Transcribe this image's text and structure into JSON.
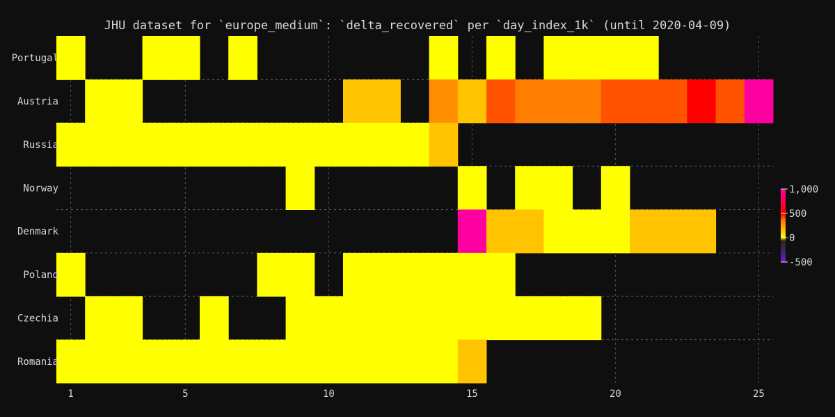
{
  "chart_data": {
    "type": "heatmap",
    "title": "JHU dataset for `europe_medium`: `delta_recovered` per `day_index_1k` (until 2020-04-09)",
    "x": [
      1,
      2,
      3,
      4,
      5,
      6,
      7,
      8,
      9,
      10,
      11,
      12,
      13,
      14,
      15,
      16,
      17,
      18,
      19,
      20,
      21,
      22,
      23,
      24,
      25
    ],
    "x_ticks": [
      "1",
      "5",
      "10",
      "15",
      "20",
      "25"
    ],
    "y_categories": [
      "Portugal",
      "Austria",
      "Russia",
      "Norway",
      "Denmark",
      "Poland",
      "Czechia",
      "Romania"
    ],
    "rows": [
      {
        "name": "Portugal",
        "values": [
          0,
          null,
          null,
          0,
          0,
          null,
          0,
          null,
          null,
          null,
          null,
          null,
          null,
          0,
          null,
          0,
          null,
          0,
          0,
          0,
          0,
          null,
          null,
          null,
          null
        ]
      },
      {
        "name": "Austria",
        "values": [
          null,
          0,
          0,
          null,
          null,
          null,
          null,
          null,
          null,
          null,
          150,
          150,
          null,
          300,
          150,
          400,
          350,
          350,
          350,
          400,
          400,
          400,
          500,
          400,
          1000
        ]
      },
      {
        "name": "Russia",
        "values": [
          0,
          0,
          0,
          0,
          0,
          0,
          0,
          0,
          0,
          0,
          0,
          0,
          0,
          150,
          null,
          null,
          null,
          null,
          null,
          null,
          null,
          null,
          null,
          null,
          null
        ]
      },
      {
        "name": "Norway",
        "values": [
          null,
          null,
          null,
          null,
          null,
          null,
          null,
          null,
          0,
          null,
          null,
          null,
          null,
          null,
          0,
          null,
          0,
          0,
          null,
          0,
          null,
          null,
          null,
          null,
          null
        ]
      },
      {
        "name": "Denmark",
        "values": [
          null,
          null,
          null,
          null,
          null,
          null,
          null,
          null,
          null,
          null,
          null,
          null,
          null,
          null,
          1000,
          150,
          150,
          0,
          0,
          0,
          150,
          150,
          150,
          null,
          null
        ]
      },
      {
        "name": "Poland",
        "values": [
          0,
          null,
          null,
          null,
          null,
          null,
          null,
          0,
          0,
          null,
          0,
          0,
          0,
          0,
          0,
          0,
          null,
          null,
          null,
          null,
          null,
          null,
          null,
          null,
          null
        ]
      },
      {
        "name": "Czechia",
        "values": [
          null,
          0,
          0,
          null,
          null,
          0,
          null,
          null,
          0,
          0,
          0,
          0,
          0,
          0,
          0,
          0,
          0,
          0,
          0,
          null,
          null,
          null,
          null,
          null,
          null
        ]
      },
      {
        "name": "Romania",
        "values": [
          0,
          0,
          0,
          0,
          0,
          0,
          0,
          0,
          0,
          0,
          0,
          0,
          0,
          0,
          150,
          null,
          null,
          null,
          null,
          null,
          null,
          null,
          null,
          null,
          null
        ]
      }
    ],
    "colorbar": {
      "range": [
        -500,
        1000
      ],
      "ticks": [
        "1,000",
        "500",
        "0",
        "-500"
      ],
      "tick_values": [
        1000,
        500,
        0,
        -500
      ]
    },
    "grid": true
  }
}
